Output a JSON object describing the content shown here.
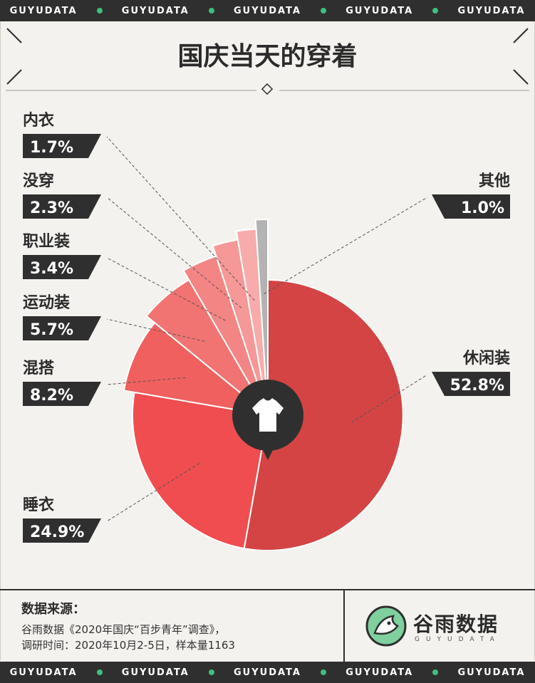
{
  "brand_strip": {
    "items": [
      "GUYUDATA",
      "GUYUDATA",
      "GUYUDATA",
      "GUYUDATA",
      "GUYUDATA"
    ]
  },
  "title": "国庆当天的穿着",
  "chart_data": {
    "type": "pie",
    "title": "国庆当天的穿着",
    "slices": [
      {
        "label": "休闲装",
        "value": 52.8,
        "display": "52.8%",
        "color": "#d44444"
      },
      {
        "label": "睡衣",
        "value": 24.9,
        "display": "24.9%",
        "color": "#ef4d4f"
      },
      {
        "label": "混搭",
        "value": 8.2,
        "display": "8.2%",
        "color": "#f0605f"
      },
      {
        "label": "运动装",
        "value": 5.7,
        "display": "5.7%",
        "color": "#f17372"
      },
      {
        "label": "职业装",
        "value": 3.4,
        "display": "3.4%",
        "color": "#f38584"
      },
      {
        "label": "没穿",
        "value": 2.3,
        "display": "2.3%",
        "color": "#f59897"
      },
      {
        "label": "内衣",
        "value": 1.7,
        "display": "1.7%",
        "color": "#f7abaa"
      },
      {
        "label": "其他",
        "value": 1.0,
        "display": "1.0%",
        "color": "#b3b3b3"
      }
    ],
    "center_icon": "tshirt-icon"
  },
  "source": {
    "title": "数据来源：",
    "line1": "谷雨数据《2020年国庆“百步青年”调查》，",
    "line2": "调研时间：2020年10月2-5日，样本量1163"
  },
  "logo": {
    "name": "谷雨数据",
    "sub": "GUYUDATA",
    "icon": "bird-logo-icon"
  },
  "colors": {
    "dark": "#2f2f2f",
    "accent_green": "#3fbf7f",
    "background": "#f4f2ee"
  }
}
